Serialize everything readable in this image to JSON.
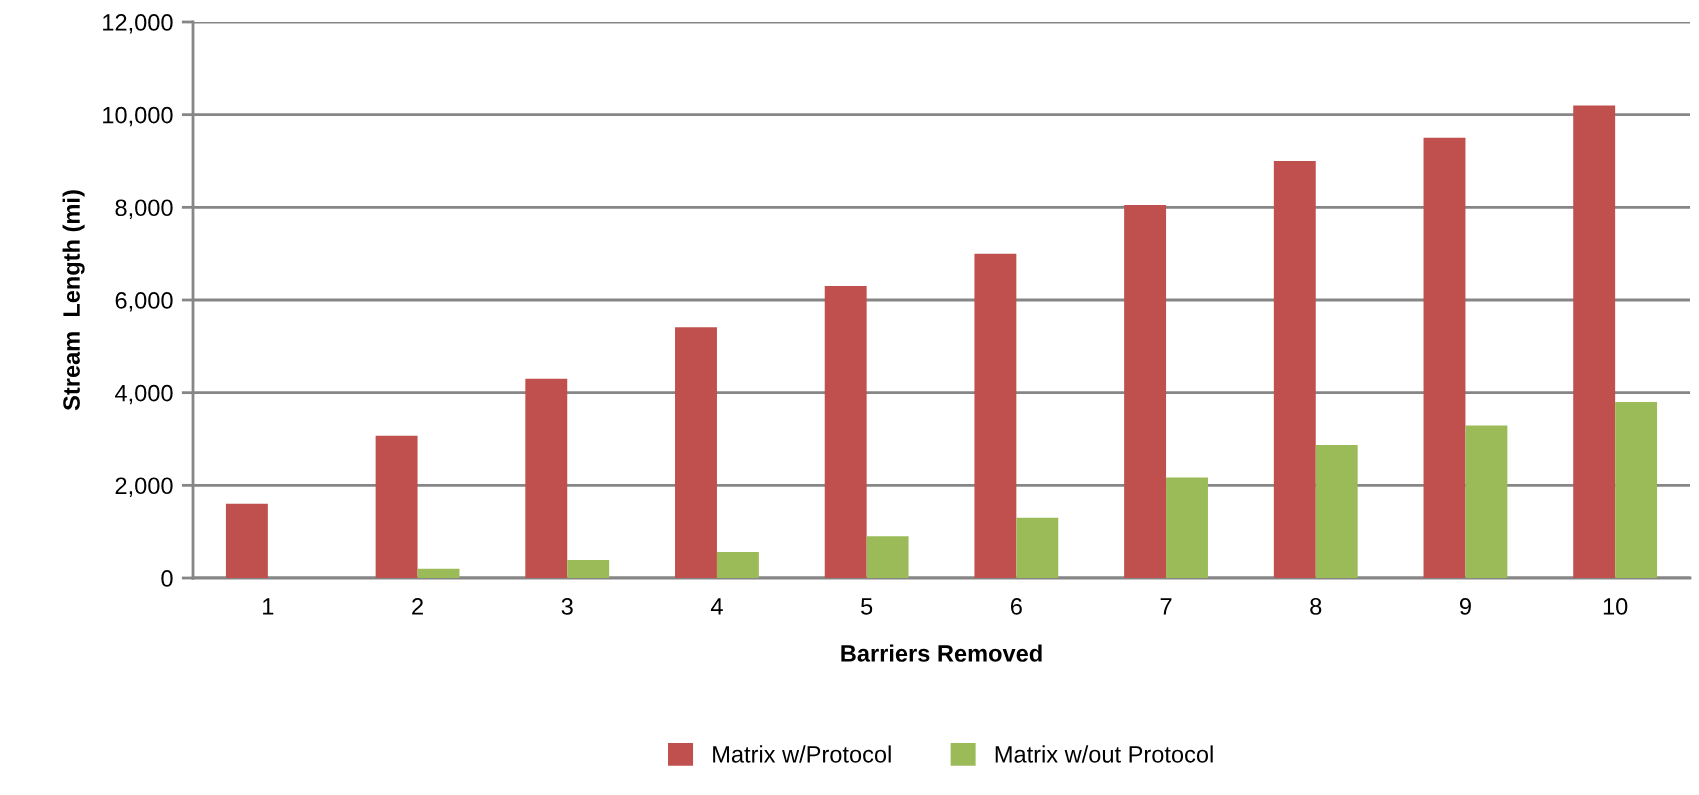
{
  "chart_data": {
    "type": "bar",
    "xlabel": "Barriers Removed",
    "ylabel": "Stream  Length (mi)",
    "categories": [
      "1",
      "2",
      "3",
      "4",
      "5",
      "6",
      "7",
      "8",
      "9",
      "10"
    ],
    "series": [
      {
        "name": "Matrix w/Protocol",
        "color": "#c0504d",
        "values": [
          1600,
          3070,
          4300,
          5410,
          6300,
          7000,
          8050,
          9000,
          9500,
          10200
        ]
      },
      {
        "name": "Matrix w/out Protocol",
        "color": "#9bbb59",
        "values": [
          0,
          200,
          390,
          560,
          900,
          1300,
          2170,
          2870,
          3290,
          3800
        ]
      }
    ],
    "ylim": [
      0,
      12000
    ],
    "yticks": [
      {
        "value": 0,
        "label": "0"
      },
      {
        "value": 2000,
        "label": "2,000"
      },
      {
        "value": 4000,
        "label": "4,000"
      },
      {
        "value": 6000,
        "label": "6,000"
      },
      {
        "value": 8000,
        "label": "8,000"
      },
      {
        "value": 10000,
        "label": "10,000"
      },
      {
        "value": 12000,
        "label": "12,000"
      }
    ],
    "grid": "y",
    "legend": "bottom"
  }
}
